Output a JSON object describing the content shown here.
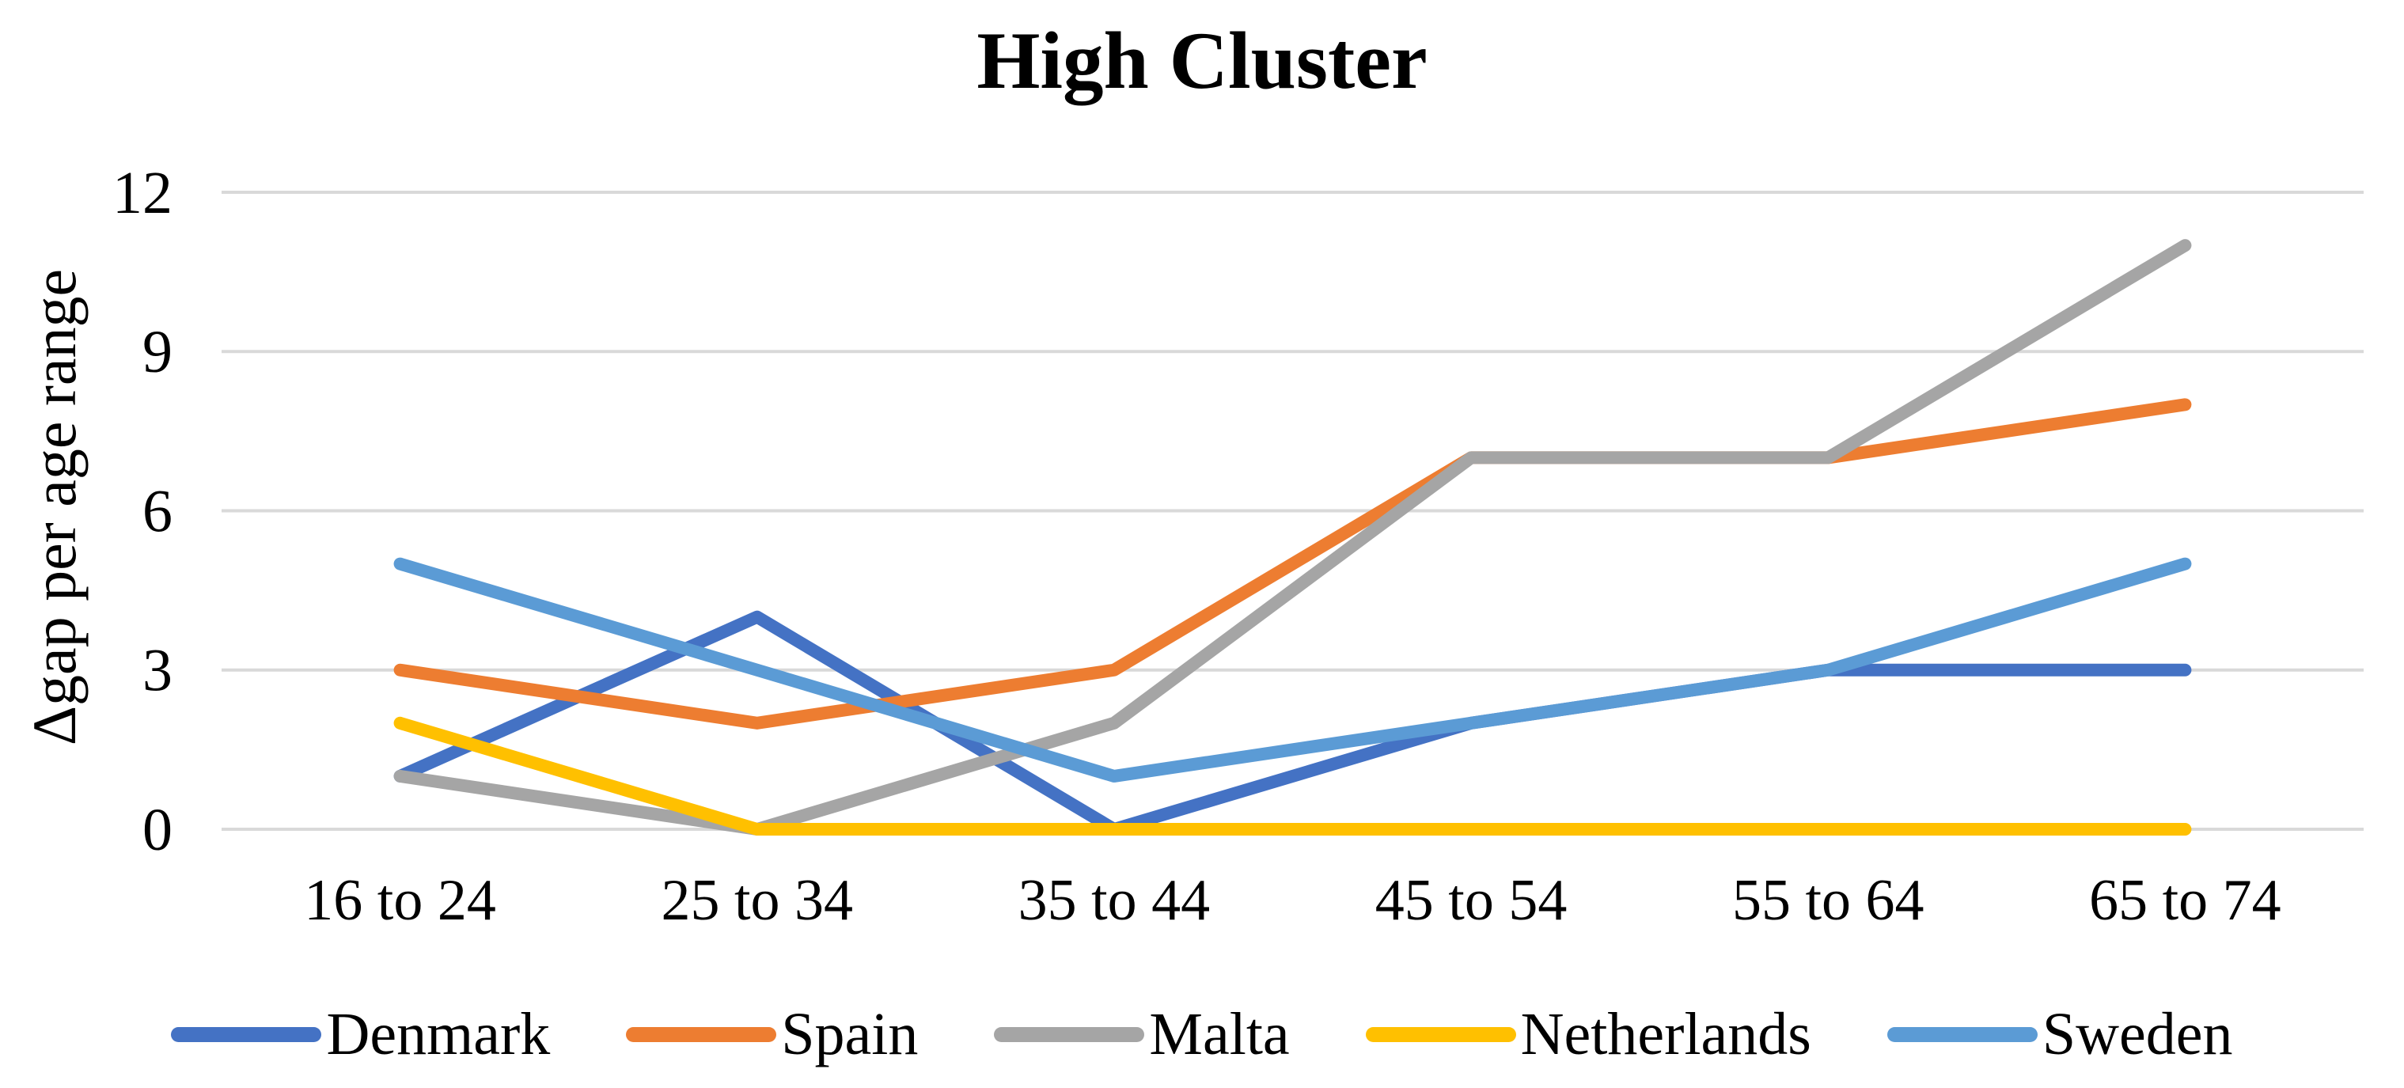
{
  "title": "High Cluster",
  "y_axis_label": "Δgap per age range",
  "chart_data": {
    "type": "line",
    "title": "High Cluster",
    "xlabel": "",
    "ylabel": "Δgap per age range",
    "categories": [
      "16 to 24",
      "25 to 34",
      "35 to 44",
      "45 to 54",
      "55 to 64",
      "65 to 74"
    ],
    "series": [
      {
        "name": "Denmark",
        "color": "#4472C4",
        "values": [
          1,
          4,
          0,
          2,
          3,
          3
        ]
      },
      {
        "name": "Spain",
        "color": "#ED7D31",
        "values": [
          3,
          2,
          3,
          7,
          7,
          8
        ]
      },
      {
        "name": "Malta",
        "color": "#A5A5A5",
        "values": [
          1,
          0,
          2,
          7,
          7,
          11
        ]
      },
      {
        "name": "Netherlands",
        "color": "#FFC000",
        "values": [
          2,
          0,
          0,
          0,
          0,
          0
        ]
      },
      {
        "name": "Sweden",
        "color": "#5B9BD5",
        "values": [
          5,
          3,
          1,
          2,
          3,
          5
        ]
      }
    ],
    "ylim": [
      0,
      12
    ],
    "yticks": [
      0,
      3,
      6,
      9,
      12
    ],
    "grid": true,
    "gridline_color": "#D9D9D9",
    "legend_position": "bottom"
  }
}
